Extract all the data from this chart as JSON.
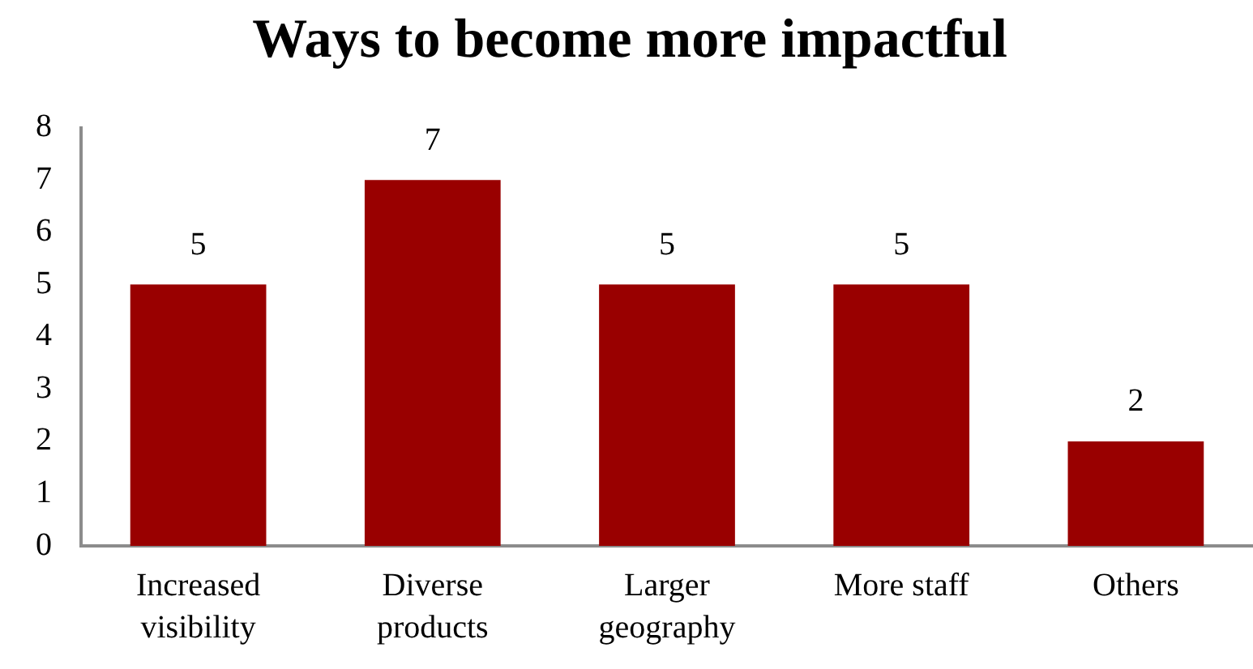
{
  "chart_data": {
    "type": "bar",
    "title": "Ways to become more impactful",
    "categories": [
      "Increased visibility",
      "Diverse products",
      "Larger geography",
      "More staff",
      "Others"
    ],
    "values": [
      5,
      7,
      5,
      5,
      2
    ],
    "color": "#990000",
    "ylim": [
      0,
      8
    ],
    "yticks": [
      0,
      1,
      2,
      3,
      4,
      5,
      6,
      7,
      8
    ],
    "grid": false,
    "data_labels": true
  }
}
